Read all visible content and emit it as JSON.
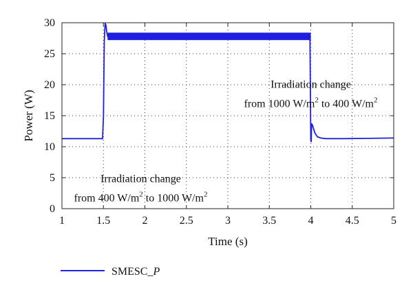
{
  "chart_data": {
    "type": "line",
    "xlabel": "Time (s)",
    "ylabel": "Power (W)",
    "xlim": [
      1,
      5
    ],
    "ylim": [
      0,
      30
    ],
    "xticks": [
      "1",
      "1.5",
      "2",
      "2.5",
      "3",
      "3.5",
      "4",
      "4.5",
      "5"
    ],
    "yticks": [
      "0",
      "5",
      "10",
      "15",
      "20",
      "25",
      "30"
    ],
    "grid": true,
    "grid_style": "dotted",
    "legend_position": "below",
    "series": [
      {
        "name": "SMESC_P",
        "color": "#1f1fdf",
        "x": [
          1.0,
          1.49,
          1.5,
          1.51,
          1.52,
          1.53,
          1.54,
          1.55,
          1.56,
          1.58,
          1.6,
          2.0,
          3.0,
          3.99,
          4.0,
          4.005,
          4.01,
          4.02,
          4.05,
          4.08,
          4.12,
          4.18,
          4.25,
          4.4,
          4.7,
          5.0
        ],
        "y": [
          11.3,
          11.3,
          15.0,
          27.0,
          29.9,
          29.6,
          28.5,
          27.8,
          27.7,
          27.7,
          27.7,
          27.7,
          27.7,
          27.7,
          11.0,
          10.8,
          13.7,
          13.5,
          12.2,
          11.6,
          11.4,
          11.3,
          11.3,
          11.3,
          11.35,
          11.4
        ],
        "band": {
          "x_start": 1.55,
          "x_end": 4.0,
          "low": 27.2,
          "high": 28.4
        }
      }
    ],
    "annotations": [
      {
        "lines": [
          {
            "text": "Irradiation change"
          },
          {
            "text": "from 1000 W/m",
            "sup": "2",
            "text2": " to 400 W/m",
            "sup2": "2"
          }
        ],
        "x": 4.0,
        "y": 19.5
      },
      {
        "lines": [
          {
            "text": "Irradiation change"
          },
          {
            "text": "from 400 W/m",
            "sup": "2",
            "text2": " to 1000 W/m",
            "sup2": "2"
          }
        ],
        "x": 1.95,
        "y": 4.3
      }
    ]
  }
}
